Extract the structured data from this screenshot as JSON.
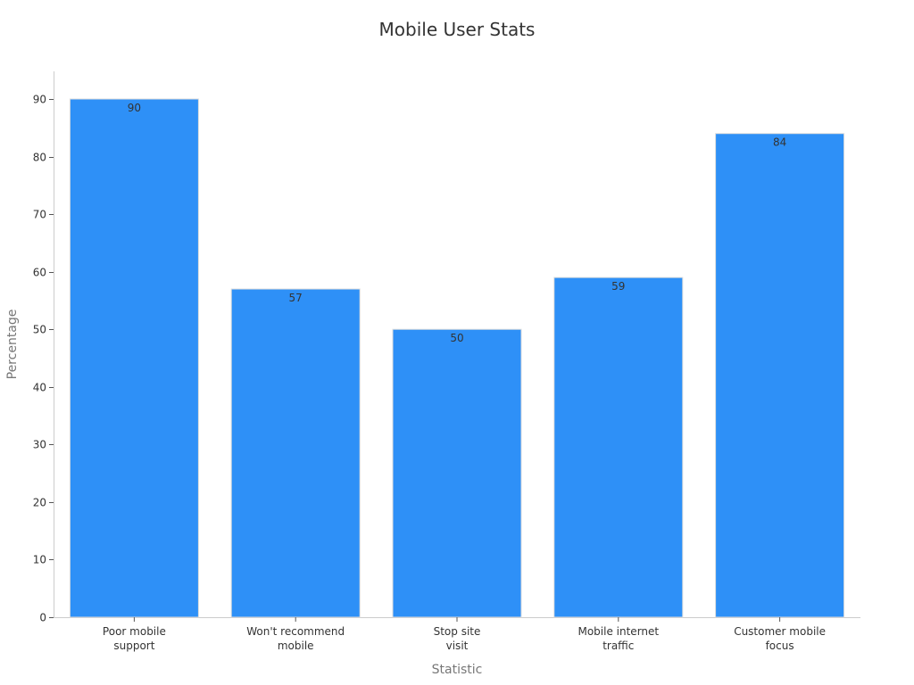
{
  "chart_data": {
    "type": "bar",
    "title": "Mobile User Stats",
    "xlabel": "Statistic",
    "ylabel": "Percentage",
    "categories": [
      [
        "Poor mobile",
        "support"
      ],
      [
        "Won't recommend",
        "mobile"
      ],
      [
        "Stop site",
        "visit"
      ],
      [
        "Mobile internet",
        "traffic"
      ],
      [
        "Customer mobile",
        "focus"
      ]
    ],
    "values": [
      90,
      57,
      50,
      59,
      84
    ],
    "ylim": [
      0,
      95
    ],
    "yticks": [
      0,
      10,
      20,
      30,
      40,
      50,
      60,
      70,
      80,
      90
    ],
    "bar_color": "#2e90f7",
    "grid": false,
    "legend": "none"
  }
}
